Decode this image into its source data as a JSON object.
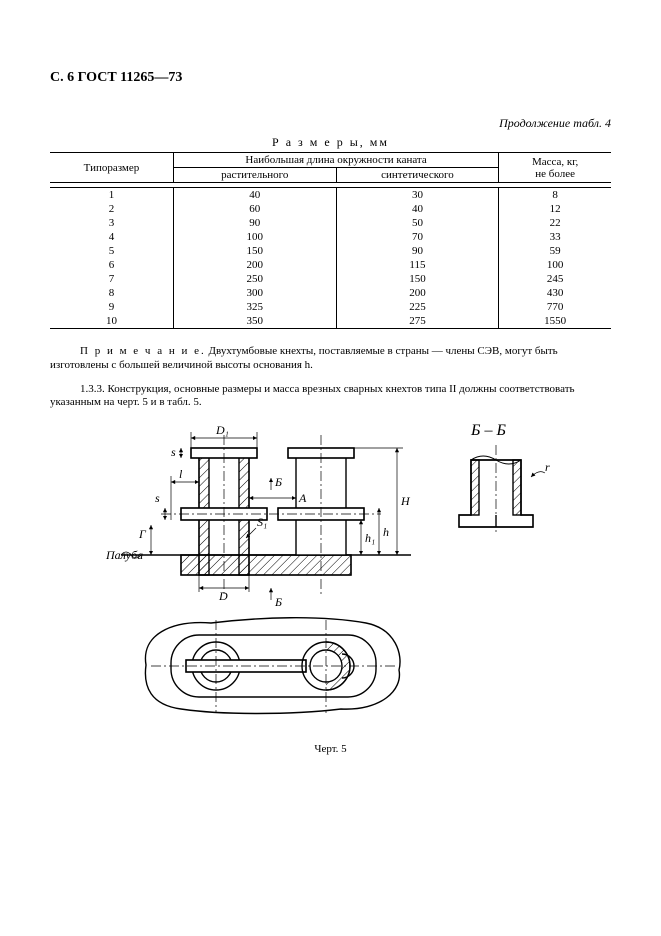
{
  "page_header": "С. 6 ГОСТ 11265—73",
  "continuation": "Продолжение табл. 4",
  "table_title": "Р а з м е р ы,  мм",
  "table": {
    "head": {
      "col1": "Типоразмер",
      "col2_top": "Наибольшая длина окружности каната",
      "col2a": "растительного",
      "col2b": "синтетического",
      "col3": "Масса, кг,\nне более"
    },
    "rows": [
      {
        "n": "1",
        "a": "40",
        "b": "30",
        "m": "8"
      },
      {
        "n": "2",
        "a": "60",
        "b": "40",
        "m": "12"
      },
      {
        "n": "3",
        "a": "90",
        "b": "50",
        "m": "22"
      },
      {
        "n": "4",
        "a": "100",
        "b": "70",
        "m": "33"
      },
      {
        "n": "5",
        "a": "150",
        "b": "90",
        "m": "59"
      },
      {
        "n": "6",
        "a": "200",
        "b": "115",
        "m": "100"
      },
      {
        "n": "7",
        "a": "250",
        "b": "150",
        "m": "245"
      },
      {
        "n": "8",
        "a": "300",
        "b": "200",
        "m": "430"
      },
      {
        "n": "9",
        "a": "325",
        "b": "225",
        "m": "770"
      },
      {
        "n": "10",
        "a": "350",
        "b": "275",
        "m": "1550"
      }
    ]
  },
  "note_label": "П р и м е ч а н и е.",
  "note_text": " Двухтумбовые кнехты, поставляемые в страны — члены СЭВ, могут быть изготовлены с большей величиной высоты основания h.",
  "para_text": "1.3.3. Конструкция, основные размеры и масса врезных сварных кнехтов типа II должны соответствовать указанным на черт. 5 и в табл. 5.",
  "figure": {
    "caption": "Черт. 5",
    "section_label": "Б – Б",
    "labels": {
      "D1": "D₁",
      "s": "s",
      "l": "l",
      "s2": "s",
      "G": "Г",
      "paluba": "Палуба",
      "D": "D",
      "B_arrow": "Б",
      "S1": "S₁",
      "h1": "h₁",
      "h": "h",
      "A": "A",
      "H": "H",
      "r": "r"
    },
    "colors": {
      "stroke": "#000000",
      "hatch": "#000000",
      "centerline": "#000000",
      "bg": "#ffffff"
    },
    "line_width": 1.4,
    "thin_line_width": 0.7
  }
}
